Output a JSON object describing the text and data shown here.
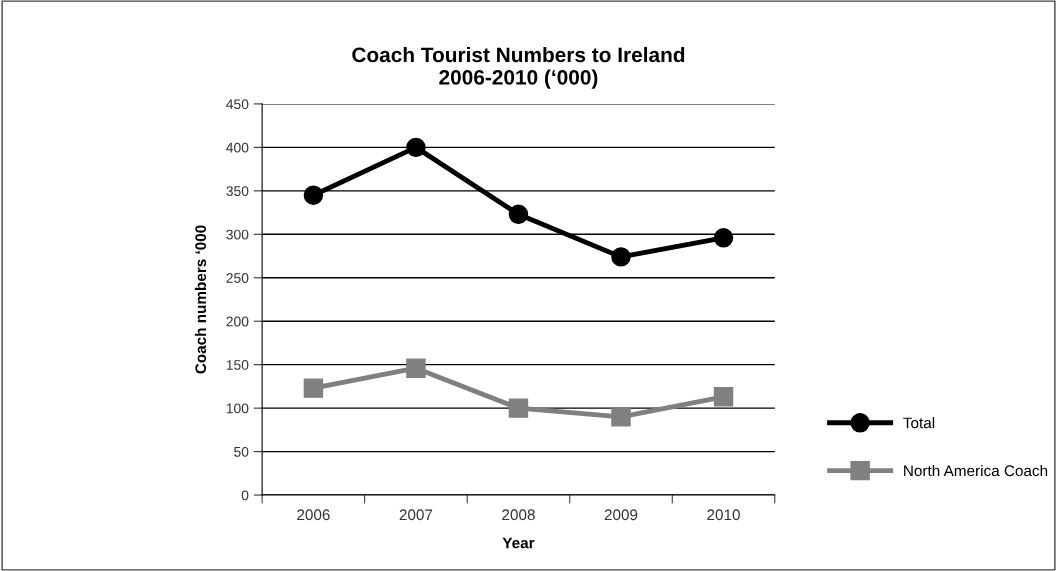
{
  "chart_data": {
    "type": "line",
    "title": "Coach Tourist Numbers to Ireland\n2006-2010 (‘000)",
    "xlabel": "Year",
    "ylabel": "Coach numbers ‘000",
    "categories": [
      "2006",
      "2007",
      "2008",
      "2009",
      "2010"
    ],
    "series": [
      {
        "name": "Total",
        "color": "#000000",
        "marker": "circle",
        "values": [
          345,
          400,
          323,
          274,
          296
        ]
      },
      {
        "name": "North America Coach",
        "color": "#808080",
        "marker": "square",
        "values": [
          123,
          146,
          100,
          90,
          113
        ]
      }
    ],
    "ylim": [
      0,
      450
    ],
    "yticks": [
      0,
      50,
      100,
      150,
      200,
      250,
      300,
      350,
      400,
      450
    ],
    "grid": "y",
    "legend": "right",
    "line_style": "solid"
  }
}
